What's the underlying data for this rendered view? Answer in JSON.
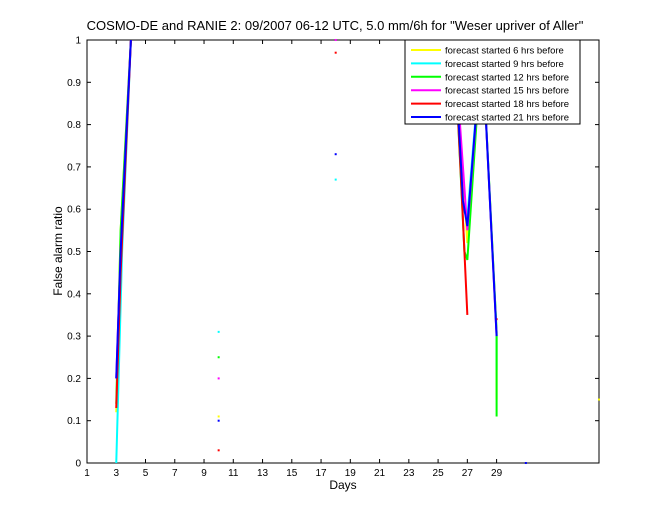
{
  "chart_data": {
    "type": "line",
    "title": "COSMO-DE and RANIE 2: 09/2007 06-12 UTC, 5.0 mm/6h for \"Weser upriver of Aller\"",
    "xlabel": "Days",
    "ylabel": "False alarm ratio",
    "xlim": [
      1,
      36
    ],
    "ylim": [
      0,
      1
    ],
    "xticks": [
      1,
      3,
      5,
      7,
      9,
      11,
      13,
      15,
      17,
      19,
      21,
      23,
      25,
      27,
      29
    ],
    "yticks": [
      0,
      0.1,
      0.2,
      0.3,
      0.4,
      0.5,
      0.6,
      0.7,
      0.8,
      0.9,
      1
    ],
    "legend_position": "top-right",
    "series": [
      {
        "name": "forecast started 6 hrs before",
        "color": "#ffff00",
        "points": [
          [
            3,
            0.12
          ],
          [
            3.3,
            0.55
          ],
          [
            4,
            1.0
          ],
          [
            10,
            0.11
          ],
          [
            26.1,
            1.0
          ],
          [
            27,
            0.52
          ],
          [
            28,
            1.0
          ],
          [
            29,
            0.31
          ],
          [
            29,
            0.15
          ],
          [
            36,
            0.15
          ]
        ]
      },
      {
        "name": "forecast started 9 hrs before",
        "color": "#00ffff",
        "points": [
          [
            3,
            0.0
          ],
          [
            3.4,
            0.5
          ],
          [
            4,
            1.0
          ],
          [
            10,
            0.31
          ],
          [
            18,
            0.67
          ],
          [
            26.1,
            1.0
          ],
          [
            26.7,
            0.6
          ],
          [
            27,
            0.58
          ],
          [
            28,
            1.0
          ],
          [
            29,
            0.31
          ],
          [
            29,
            0.22
          ]
        ]
      },
      {
        "name": "forecast started 12 hrs before",
        "color": "#00ff00",
        "points": [
          [
            3,
            0.14
          ],
          [
            3.3,
            0.55
          ],
          [
            4,
            1.0
          ],
          [
            10,
            0.25
          ],
          [
            26.1,
            1.0
          ],
          [
            26.8,
            0.5
          ],
          [
            27,
            0.48
          ],
          [
            28,
            1.0
          ],
          [
            29,
            0.31
          ],
          [
            29,
            0.11
          ]
        ]
      },
      {
        "name": "forecast started 15 hrs before",
        "color": "#ff00ff",
        "points": [
          [
            3,
            0.2
          ],
          [
            3.3,
            0.5
          ],
          [
            4,
            1.0
          ],
          [
            10,
            0.2
          ],
          [
            18,
            1.0
          ],
          [
            26.1,
            1.0
          ],
          [
            26.7,
            0.7
          ],
          [
            27,
            0.55
          ],
          [
            28,
            1.0
          ],
          [
            29,
            0.3
          ]
        ]
      },
      {
        "name": "forecast started 18 hrs before",
        "color": "#ff0000",
        "points": [
          [
            3,
            0.13
          ],
          [
            3.3,
            0.45
          ],
          [
            4,
            1.0
          ],
          [
            10,
            0.03
          ],
          [
            18,
            0.97
          ],
          [
            26.1,
            1.0
          ],
          [
            26.6,
            0.65
          ],
          [
            27,
            0.35
          ],
          [
            29,
            0.34
          ]
        ]
      },
      {
        "name": "forecast started 21 hrs before",
        "color": "#0000ff",
        "points": [
          [
            3,
            0.2
          ],
          [
            3.3,
            0.5
          ],
          [
            4,
            1.0
          ],
          [
            10,
            0.1
          ],
          [
            18,
            0.73
          ],
          [
            26.1,
            1.0
          ],
          [
            26.7,
            0.62
          ],
          [
            27,
            0.56
          ],
          [
            28,
            1.0
          ],
          [
            29,
            0.3
          ],
          [
            31,
            0.0
          ]
        ]
      }
    ],
    "segments": [
      [
        [
          3,
          0.12
        ],
        [
          3.3,
          0.55
        ],
        [
          4,
          1.0
        ]
      ],
      [
        [
          26.1,
          1.0
        ],
        [
          27,
          0.52
        ],
        [
          28,
          1.0
        ],
        [
          29,
          0.31
        ]
      ]
    ]
  }
}
